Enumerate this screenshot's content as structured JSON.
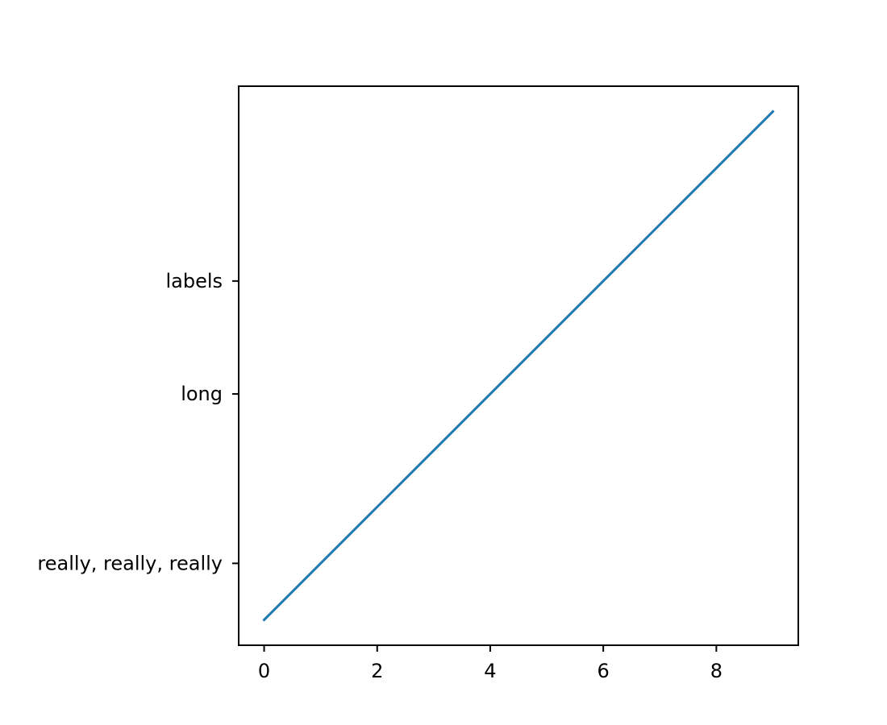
{
  "chart_data": {
    "type": "line",
    "title": "",
    "xlabel": "",
    "ylabel": "",
    "xlim": [
      -0.45,
      9.45
    ],
    "ylim": [
      -0.45,
      9.45
    ],
    "grid": false,
    "x_ticks": [
      0,
      2,
      4,
      6,
      8
    ],
    "x_tick_labels": [
      "0",
      "2",
      "4",
      "6",
      "8"
    ],
    "y_ticks": [
      1,
      4,
      6
    ],
    "y_tick_labels": [
      "really, really, really",
      "long",
      "labels"
    ],
    "series": [
      {
        "color": "#1f77b4",
        "x": [
          0,
          1,
          2,
          3,
          4,
          5,
          6,
          7,
          8,
          9
        ],
        "y": [
          0,
          1,
          2,
          3,
          4,
          5,
          6,
          7,
          8,
          9
        ]
      }
    ]
  }
}
